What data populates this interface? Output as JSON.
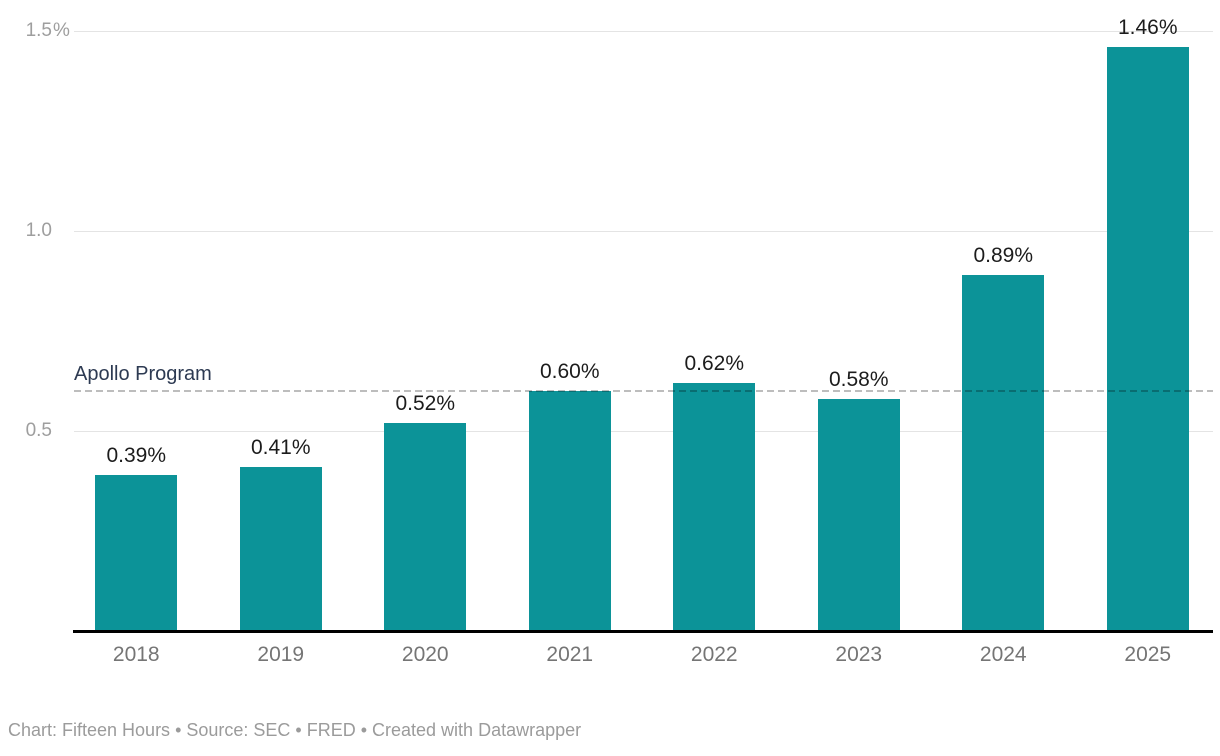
{
  "chart_data": {
    "type": "bar",
    "title": "",
    "xlabel": "",
    "ylabel": "",
    "categories": [
      "2018",
      "2019",
      "2020",
      "2021",
      "2022",
      "2023",
      "2024",
      "2025"
    ],
    "values": [
      0.39,
      0.41,
      0.52,
      0.6,
      0.62,
      0.58,
      0.89,
      1.46
    ],
    "bar_labels": [
      "0.39%",
      "0.41%",
      "0.52%",
      "0.60%",
      "0.62%",
      "0.58%",
      "0.89%",
      "1.46%"
    ],
    "ylim": [
      0,
      1.5
    ],
    "grid": "horizontal",
    "legend": "none",
    "y_ticks": [
      {
        "value": 0.5,
        "label": "0.5",
        "suffix": ""
      },
      {
        "value": 1.0,
        "label": "1.0",
        "suffix": ""
      },
      {
        "value": 1.5,
        "label": "1.5",
        "suffix": "%"
      }
    ],
    "reference_line": {
      "value": 0.6,
      "label": "Apollo Program",
      "style": "dashed"
    },
    "colors": {
      "bar": "#0C9398",
      "grid": "#E4E4E4",
      "axis_line": "#000000",
      "reference_line": "#BDBDBD",
      "value_label": "#1C1C1C",
      "tick_label": "#9E9E9E",
      "category_label": "#757575",
      "reference_label": "#2D3A52",
      "footer_text": "#9B9B9B"
    }
  },
  "footer": {
    "text": "Chart: Fifteen Hours • Source: SEC • FRED • Created with Datawrapper"
  }
}
